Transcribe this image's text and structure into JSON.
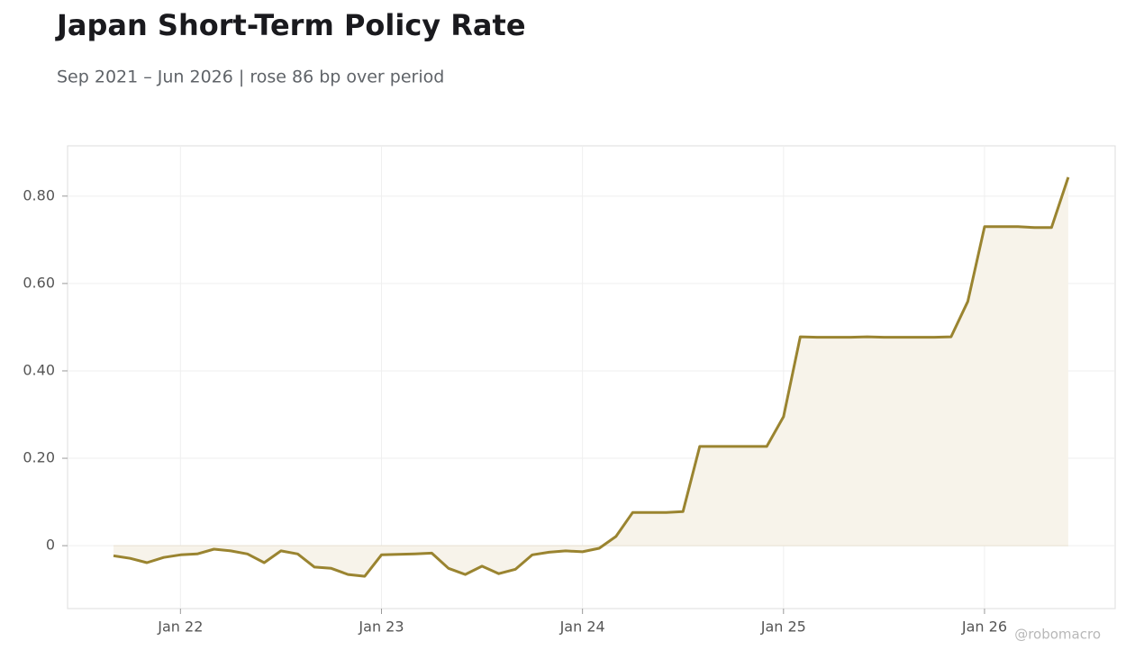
{
  "chart_data": {
    "type": "line",
    "title": "Japan Short-Term Policy Rate",
    "subtitle": "Sep 2021 – Jun 2026 | rose 86 bp over period",
    "watermark": "@robomacro",
    "x": [
      "2021-09",
      "2021-10",
      "2021-11",
      "2021-12",
      "2022-01",
      "2022-02",
      "2022-03",
      "2022-04",
      "2022-05",
      "2022-06",
      "2022-07",
      "2022-08",
      "2022-09",
      "2022-10",
      "2022-11",
      "2022-12",
      "2023-01",
      "2023-02",
      "2023-03",
      "2023-04",
      "2023-05",
      "2023-06",
      "2023-07",
      "2023-08",
      "2023-09",
      "2023-10",
      "2023-11",
      "2023-12",
      "2024-01",
      "2024-02",
      "2024-03",
      "2024-04",
      "2024-05",
      "2024-06",
      "2024-07",
      "2024-08",
      "2024-09",
      "2024-10",
      "2024-11",
      "2024-12",
      "2025-01",
      "2025-02",
      "2025-03",
      "2025-04",
      "2025-05",
      "2025-06",
      "2025-07",
      "2025-08",
      "2025-09",
      "2025-10",
      "2025-11",
      "2025-12",
      "2026-01",
      "2026-02",
      "2026-03",
      "2026-04",
      "2026-05",
      "2026-06"
    ],
    "series": [
      {
        "name": "Japan Short-Term Policy Rate",
        "color": "#9a8430",
        "fill": "#f7f3ea",
        "values": [
          -0.023,
          -0.029,
          -0.039,
          -0.027,
          -0.021,
          -0.019,
          -0.008,
          -0.012,
          -0.019,
          -0.039,
          -0.012,
          -0.019,
          -0.049,
          -0.052,
          -0.066,
          -0.07,
          -0.021,
          -0.02,
          -0.019,
          -0.017,
          -0.052,
          -0.066,
          -0.047,
          -0.064,
          -0.054,
          -0.021,
          -0.015,
          -0.012,
          -0.014,
          -0.006,
          0.021,
          0.076,
          0.076,
          0.076,
          0.078,
          0.227,
          0.227,
          0.227,
          0.227,
          0.227,
          0.295,
          0.478,
          0.477,
          0.477,
          0.477,
          0.478,
          0.477,
          0.477,
          0.477,
          0.477,
          0.478,
          0.559,
          0.73,
          0.73,
          0.73,
          0.728,
          0.728,
          0.843
        ]
      }
    ],
    "ylim": [
      -0.144,
      0.915
    ],
    "yticks": [
      0,
      {
        "value": 0.2,
        "label": "0.20"
      },
      {
        "value": 0.4,
        "label": "0.40"
      },
      {
        "value": 0.6,
        "label": "0.60"
      },
      {
        "value": 0.8,
        "label": "0.80"
      }
    ],
    "xticks": [
      {
        "value": "2022-01",
        "label": "Jan 22"
      },
      {
        "value": "2023-01",
        "label": "Jan 23"
      },
      {
        "value": "2024-01",
        "label": "Jan 24"
      },
      {
        "value": "2025-01",
        "label": "Jan 25"
      },
      {
        "value": "2026-01",
        "label": "Jan 26"
      }
    ],
    "grid": true
  }
}
